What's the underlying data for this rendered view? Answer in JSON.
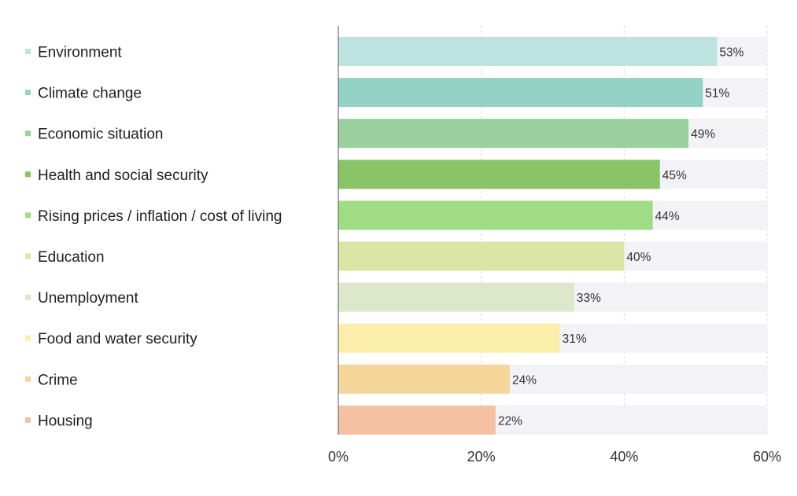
{
  "chart_data": {
    "type": "bar",
    "orientation": "horizontal",
    "categories": [
      "Environment",
      "Climate change",
      "Economic situation",
      "Health and social security",
      "Rising prices / inflation / cost of living",
      "Education",
      "Unemployment",
      "Food and water security",
      "Crime",
      "Housing"
    ],
    "values": [
      53,
      51,
      49,
      45,
      44,
      40,
      33,
      31,
      24,
      22
    ],
    "value_labels": [
      "53%",
      "51%",
      "49%",
      "45%",
      "44%",
      "40%",
      "33%",
      "31%",
      "24%",
      "22%"
    ],
    "colors": [
      "#bde3e0",
      "#94d2c6",
      "#9bcf9e",
      "#89c566",
      "#a0dc84",
      "#dbe6a6",
      "#dde7c9",
      "#fbeeaa",
      "#f4d69b",
      "#f4c2a2"
    ],
    "track_color": "#f2f2f7",
    "xlim": [
      0,
      60
    ],
    "xticks": [
      0,
      20,
      40,
      60
    ],
    "xtick_labels": [
      "0%",
      "20%",
      "40%",
      "60%"
    ],
    "grid": true,
    "legend_position": "left",
    "title": "",
    "xlabel": "",
    "ylabel": ""
  }
}
